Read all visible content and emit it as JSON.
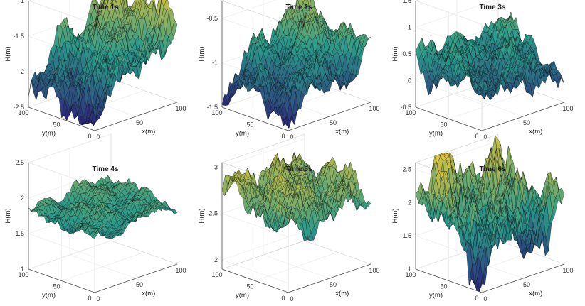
{
  "colors": {
    "low": "#2b1f7a",
    "mid": "#2a9a8a",
    "high": "#e0c43a",
    "wire": "#111111",
    "box": "#d9d9d9",
    "grid": "#ececec"
  },
  "chart_data": [
    {
      "type": "surface",
      "title": "Time 1s",
      "xlabel": "x(m)",
      "ylabel": "y(m)",
      "zlabel": "H(m)",
      "xlim": [
        0,
        100
      ],
      "ylim": [
        0,
        100
      ],
      "xticks": [
        "0",
        "50",
        "100"
      ],
      "yticks": [
        "0",
        "50",
        "100"
      ],
      "zlim": [
        -2.5,
        -1
      ],
      "zticks": [
        "-2.5",
        "-2",
        "-1.5",
        "-1"
      ],
      "surface": {
        "corner_values": [
          -2.2,
          -1.5,
          -2.3,
          -1.1
        ],
        "roughness": 0.35,
        "seed": 11
      }
    },
    {
      "type": "surface",
      "title": "Time 2s",
      "xlabel": "x(m)",
      "ylabel": "y(m)",
      "zlabel": "H(m)",
      "xlim": [
        0,
        100
      ],
      "ylim": [
        0,
        100
      ],
      "xticks": [
        "0",
        "50",
        "100"
      ],
      "yticks": [
        "0",
        "50",
        "100"
      ],
      "zlim": [
        -1.5,
        -0.3
      ],
      "zticks": [
        "-1.5",
        "-1",
        "-0.5"
      ],
      "surface": {
        "corner_values": [
          -1.2,
          -1.0,
          -1.3,
          -0.5
        ],
        "roughness": 0.3,
        "seed": 23
      }
    },
    {
      "type": "surface",
      "title": "Time 3s",
      "xlabel": "x(m)",
      "ylabel": "y(m)",
      "zlabel": "H(m)",
      "xlim": [
        0,
        100
      ],
      "ylim": [
        0,
        100
      ],
      "xticks": [
        "0",
        "50",
        "100"
      ],
      "yticks": [
        "0",
        "50",
        "100"
      ],
      "zlim": [
        -0.5,
        1.5
      ],
      "zticks": [
        "-0.5",
        "0",
        "0.5",
        "1",
        "1.5"
      ],
      "surface": {
        "corner_values": [
          0.2,
          0.05,
          0.4,
          0.55
        ],
        "roughness": 0.28,
        "seed": 37
      }
    },
    {
      "type": "surface",
      "title": "Time 4s",
      "xlabel": "x(m)",
      "ylabel": "y(m)",
      "zlabel": "H(m)",
      "xlim": [
        0,
        100
      ],
      "ylim": [
        0,
        100
      ],
      "xticks": [
        "0",
        "50",
        "100"
      ],
      "yticks": [
        "0",
        "50",
        "100"
      ],
      "zlim": [
        1,
        2.5
      ],
      "zticks": [
        "1",
        "1.5",
        "2",
        "2.5"
      ],
      "surface": {
        "corner_values": [
          1.75,
          1.8,
          1.8,
          1.9
        ],
        "roughness": 0.15,
        "seed": 41
      }
    },
    {
      "type": "surface",
      "title": "Time 5s",
      "xlabel": "x(m)",
      "ylabel": "y(m)",
      "zlabel": "H(m)",
      "xlim": [
        0,
        100
      ],
      "ylim": [
        0,
        100
      ],
      "xticks": [
        "0",
        "50",
        "100"
      ],
      "yticks": [
        "0",
        "50",
        "100"
      ],
      "zlim": [
        1.9,
        3.05
      ],
      "zticks": [
        "2",
        "2.5",
        "3"
      ],
      "surface": {
        "corner_values": [
          2.6,
          2.7,
          2.85,
          2.7
        ],
        "roughness": 0.3,
        "seed": 53
      }
    },
    {
      "type": "surface",
      "title": "Time 6s",
      "xlabel": "x(m)",
      "ylabel": "y(m)",
      "zlabel": "H(m)",
      "xlim": [
        0,
        100
      ],
      "ylim": [
        0,
        100
      ],
      "xticks": [
        "0",
        "50",
        "100"
      ],
      "yticks": [
        "0",
        "50",
        "100"
      ],
      "zlim": [
        1,
        2.6
      ],
      "zticks": [
        "1",
        "1.5",
        "2",
        "2.5"
      ],
      "surface": {
        "corner_values": [
          1.5,
          1.7,
          2.2,
          2.2
        ],
        "roughness": 0.5,
        "seed": 67
      }
    }
  ]
}
